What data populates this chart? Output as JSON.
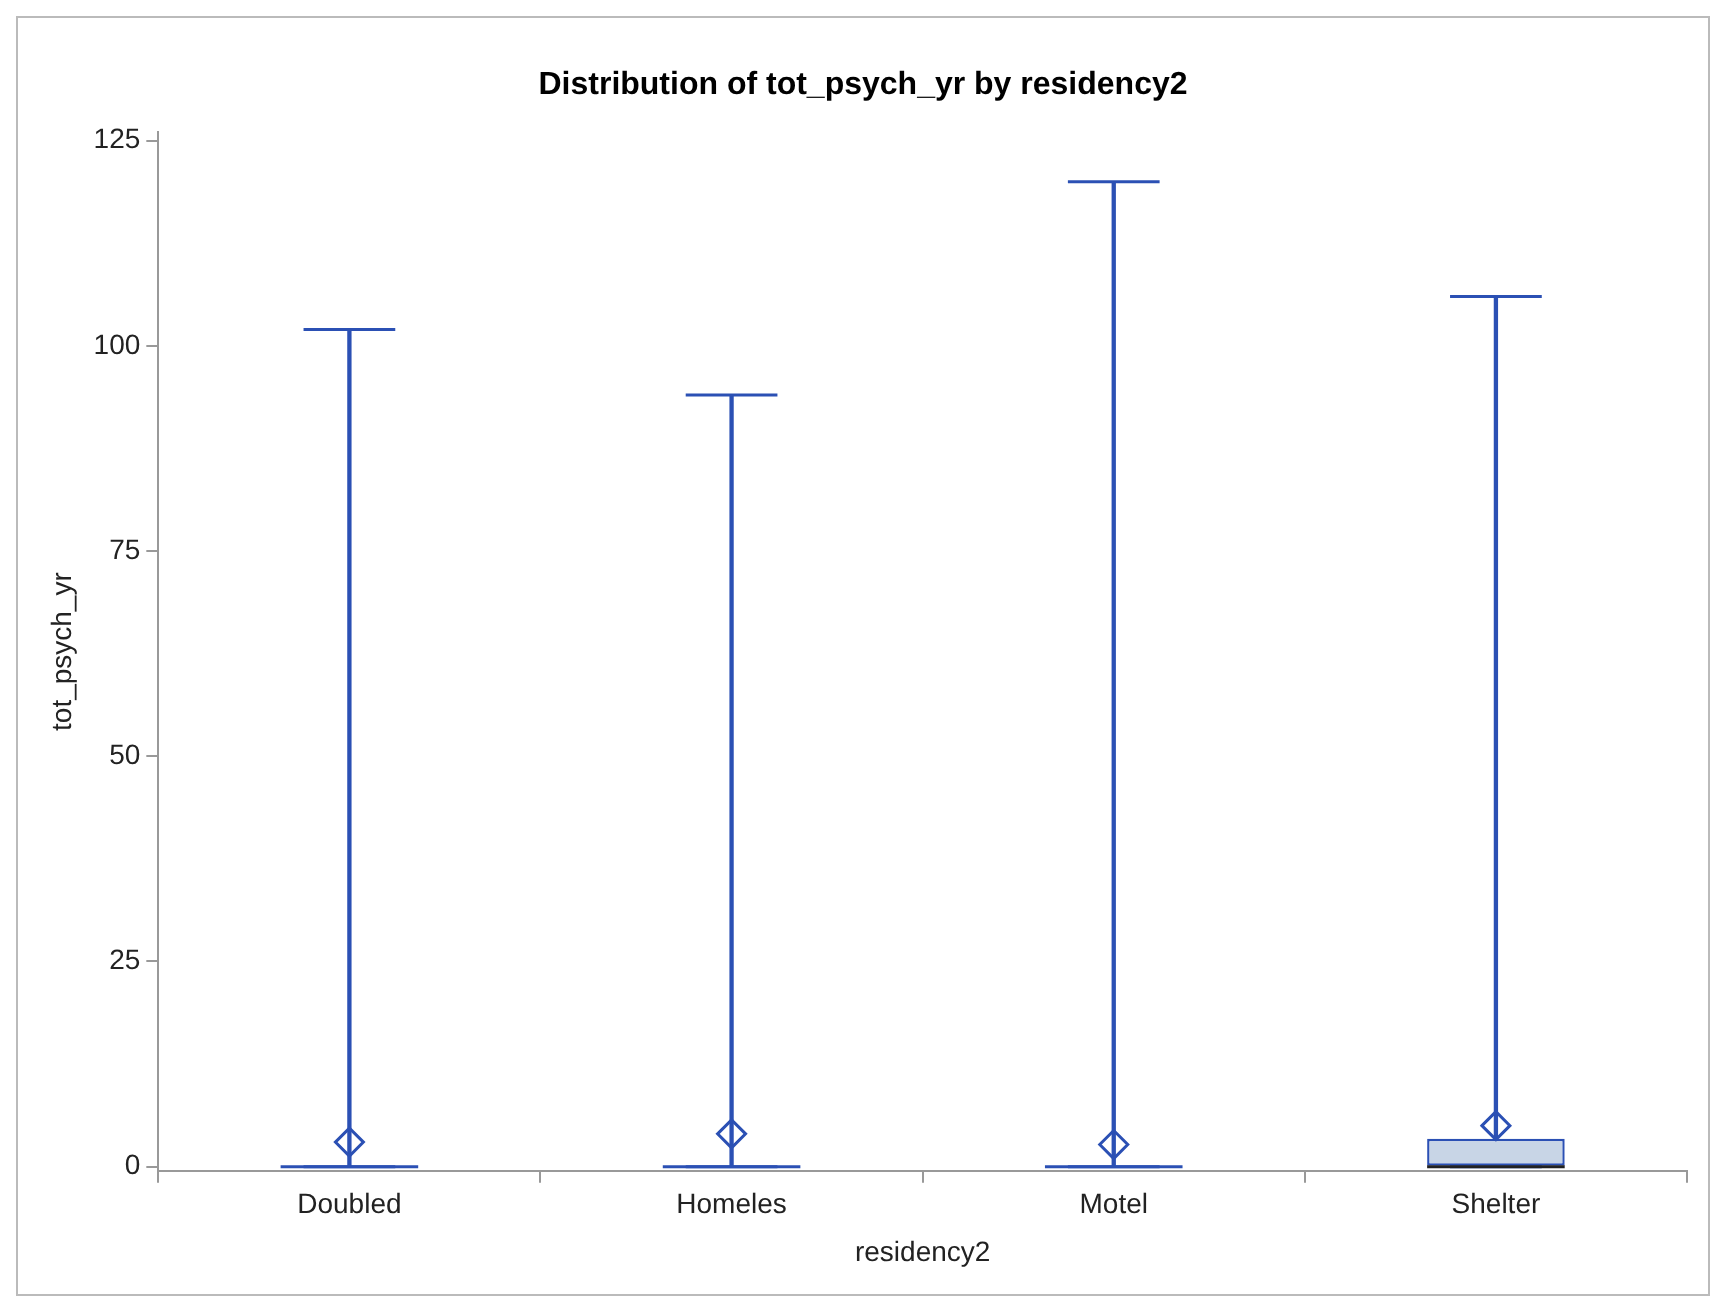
{
  "chart_data": {
    "type": "box",
    "title": "Distribution of tot_psych_yr by residency2",
    "xlabel": "residency2",
    "ylabel": "tot_psych_yr",
    "categories": [
      "Doubled",
      "Homeles",
      "Motel",
      "Shelter"
    ],
    "series": [
      {
        "color": "#2b50b4",
        "boxes": [
          {
            "low": 0,
            "q1": 0,
            "median": 0,
            "q3": 0,
            "high": 102,
            "mean": 3
          },
          {
            "low": 0,
            "q1": 0,
            "median": 0,
            "q3": 0,
            "high": 94,
            "mean": 4
          },
          {
            "low": 0,
            "q1": 0,
            "median": 0,
            "q3": 0,
            "high": 120,
            "mean": 2.7
          },
          {
            "low": 0,
            "q1": 0,
            "median": 0,
            "q3": 3.4,
            "high": 106,
            "mean": 5
          }
        ]
      }
    ],
    "ylim": [
      -0.5,
      126
    ],
    "yticks": [
      0,
      25,
      50,
      75,
      100,
      125
    ],
    "grid": false,
    "legend": false,
    "marker": "diamond"
  }
}
